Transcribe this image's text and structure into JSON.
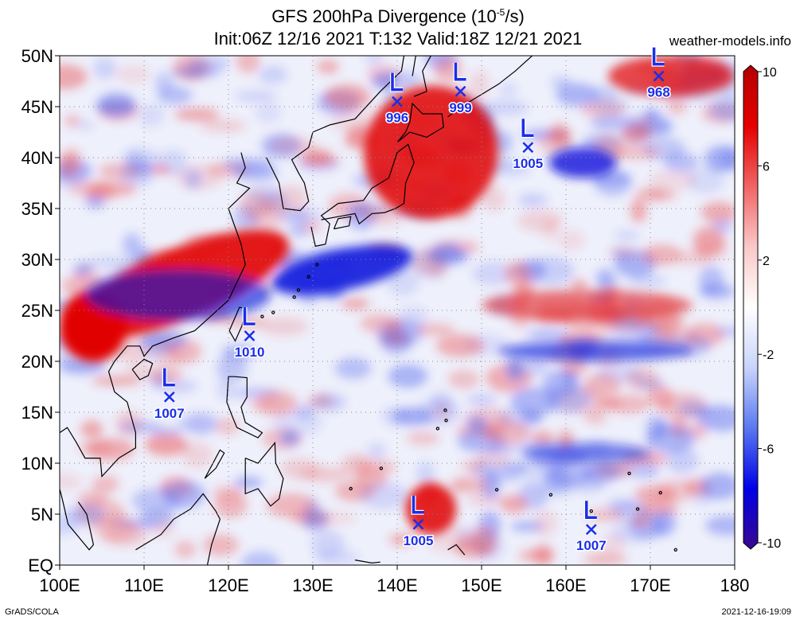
{
  "title_line1": "GFS 200hPa Divergence (10",
  "title_exp": "-5",
  "title_line1_end": "/s)",
  "title_line2": "Init:06Z 12/16 2021 T:132 Valid:18Z 12/21 2021",
  "site": "weather-models.info",
  "footer_left": "GrADS/COLA",
  "footer_right": "2021-12-16-19:09",
  "lat_labels": [
    "EQ",
    "5N",
    "10N",
    "15N",
    "20N",
    "25N",
    "30N",
    "35N",
    "40N",
    "45N",
    "50N"
  ],
  "lon_labels": [
    "100E",
    "110E",
    "120E",
    "130E",
    "140E",
    "150E",
    "160E",
    "170E",
    "180"
  ],
  "colorbar": {
    "labels": [
      "10",
      "6",
      "2",
      "-2",
      "-6",
      "-10"
    ],
    "min": -10,
    "max": 10,
    "colors": [
      "#3a0a8f",
      "#0000e6",
      "#5a78f0",
      "#c8d4fa",
      "#ffffff",
      "#fac8c8",
      "#f06464",
      "#e60000",
      "#b40000"
    ]
  },
  "lows": [
    {
      "lon": 140.0,
      "lat": 45.5,
      "pressure": "996"
    },
    {
      "lon": 147.5,
      "lat": 46.5,
      "pressure": "999"
    },
    {
      "lon": 155.5,
      "lat": 41.0,
      "pressure": "1005"
    },
    {
      "lon": 171.0,
      "lat": 48.0,
      "pressure": "968"
    },
    {
      "lon": 122.5,
      "lat": 22.5,
      "pressure": "1010"
    },
    {
      "lon": 113.0,
      "lat": 16.5,
      "pressure": "1007"
    },
    {
      "lon": 142.5,
      "lat": 4.0,
      "pressure": "1005"
    },
    {
      "lon": 163.0,
      "lat": 3.5,
      "pressure": "1007"
    }
  ],
  "divergence_features": [
    {
      "type": "pos",
      "lon1": 100,
      "lat1": 24,
      "lon2": 128,
      "lat2": 31,
      "strength": 0.9
    },
    {
      "type": "pos",
      "lon1": 100,
      "lat1": 20,
      "lon2": 108,
      "lat2": 27,
      "strength": 1.0
    },
    {
      "type": "pos",
      "lon1": 136,
      "lat1": 34,
      "lon2": 152,
      "lat2": 47,
      "strength": 0.85
    },
    {
      "type": "pos",
      "lon1": 141,
      "lat1": 3,
      "lon2": 147,
      "lat2": 8,
      "strength": 0.85
    },
    {
      "type": "pos",
      "lon1": 165,
      "lat1": 46,
      "lon2": 180,
      "lat2": 50,
      "strength": 0.7
    },
    {
      "type": "pos",
      "lon1": 150,
      "lat1": 24,
      "lon2": 175,
      "lat2": 27,
      "strength": 0.5
    },
    {
      "type": "neg",
      "lon1": 125,
      "lat1": 27,
      "lon2": 142,
      "lat2": 31,
      "strength": 0.9
    },
    {
      "type": "neg",
      "lon1": 103,
      "lat1": 24,
      "lon2": 125,
      "lat2": 29,
      "strength": 0.6
    },
    {
      "type": "neg",
      "lon1": 158,
      "lat1": 38,
      "lon2": 166,
      "lat2": 41,
      "strength": 0.8
    },
    {
      "type": "neg",
      "lon1": 152,
      "lat1": 20,
      "lon2": 175,
      "lat2": 22,
      "strength": 0.6
    },
    {
      "type": "neg",
      "lon1": 155,
      "lat1": 10,
      "lon2": 170,
      "lat2": 12,
      "strength": 0.5
    }
  ]
}
